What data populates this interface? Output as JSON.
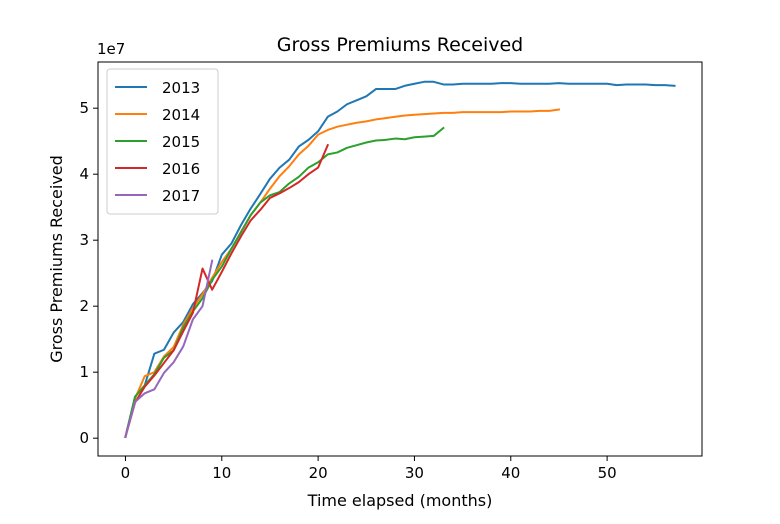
{
  "chart_data": {
    "type": "line",
    "title": "Gross Premiums Received",
    "xlabel": "Time elapsed (months)",
    "ylabel": "Gross Premiums Received",
    "y_offset_text": "1e7",
    "xlim": [
      -2.85,
      59.85
    ],
    "ylim": [
      -0.27,
      5.7
    ],
    "x_ticks": [
      0,
      10,
      20,
      30,
      40,
      50
    ],
    "x_tick_labels": [
      "0",
      "10",
      "20",
      "30",
      "40",
      "50"
    ],
    "y_ticks": [
      0,
      1,
      2,
      3,
      4,
      5
    ],
    "y_tick_labels": [
      "0",
      "1",
      "2",
      "3",
      "4",
      "5"
    ],
    "y_scale_note": "values in units of 1e7",
    "grid": false,
    "legend_position": "top-left",
    "series": [
      {
        "name": "2013",
        "color": "#1f77b4",
        "x": [
          0,
          1,
          2,
          3,
          4,
          5,
          6,
          7,
          8,
          9,
          10,
          11,
          12,
          13,
          14,
          15,
          16,
          17,
          18,
          19,
          20,
          21,
          22,
          23,
          24,
          25,
          26,
          27,
          28,
          29,
          30,
          31,
          32,
          33,
          34,
          35,
          36,
          37,
          38,
          39,
          40,
          41,
          42,
          43,
          44,
          45,
          46,
          47,
          48,
          49,
          50,
          51,
          52,
          53,
          54,
          55,
          56,
          57
        ],
        "values": [
          0.02,
          0.63,
          0.8,
          1.28,
          1.34,
          1.6,
          1.76,
          2.03,
          2.2,
          2.38,
          2.78,
          2.95,
          3.23,
          3.48,
          3.7,
          3.93,
          4.1,
          4.22,
          4.42,
          4.52,
          4.65,
          4.87,
          4.95,
          5.06,
          5.12,
          5.18,
          5.29,
          5.29,
          5.29,
          5.34,
          5.37,
          5.4,
          5.4,
          5.36,
          5.36,
          5.37,
          5.37,
          5.37,
          5.37,
          5.38,
          5.38,
          5.37,
          5.37,
          5.37,
          5.37,
          5.38,
          5.37,
          5.37,
          5.37,
          5.37,
          5.37,
          5.35,
          5.36,
          5.36,
          5.36,
          5.35,
          5.35,
          5.34
        ]
      },
      {
        "name": "2014",
        "color": "#ff7f0e",
        "x": [
          0,
          1,
          2,
          3,
          4,
          5,
          6,
          7,
          8,
          9,
          10,
          11,
          12,
          13,
          14,
          15,
          16,
          17,
          18,
          19,
          20,
          21,
          22,
          23,
          24,
          25,
          26,
          27,
          28,
          29,
          30,
          31,
          32,
          33,
          34,
          35,
          36,
          37,
          38,
          39,
          40,
          41,
          42,
          43,
          44,
          45
        ],
        "values": [
          0.02,
          0.6,
          0.94,
          1.0,
          1.24,
          1.38,
          1.72,
          1.97,
          2.18,
          2.43,
          2.67,
          2.87,
          3.13,
          3.38,
          3.57,
          3.78,
          3.97,
          4.12,
          4.3,
          4.43,
          4.6,
          4.67,
          4.72,
          4.75,
          4.78,
          4.8,
          4.83,
          4.85,
          4.87,
          4.89,
          4.9,
          4.91,
          4.92,
          4.93,
          4.93,
          4.94,
          4.94,
          4.94,
          4.94,
          4.94,
          4.95,
          4.95,
          4.95,
          4.96,
          4.96,
          4.98
        ]
      },
      {
        "name": "2015",
        "color": "#2ca02c",
        "x": [
          0,
          1,
          2,
          3,
          4,
          5,
          6,
          7,
          8,
          9,
          10,
          11,
          12,
          13,
          14,
          15,
          16,
          17,
          18,
          19,
          20,
          21,
          22,
          23,
          24,
          25,
          26,
          27,
          28,
          29,
          30,
          31,
          32,
          33
        ],
        "values": [
          0.02,
          0.63,
          0.8,
          0.97,
          1.22,
          1.33,
          1.68,
          1.92,
          2.12,
          2.4,
          2.6,
          2.87,
          3.12,
          3.38,
          3.57,
          3.68,
          3.73,
          3.86,
          3.96,
          4.1,
          4.18,
          4.3,
          4.33,
          4.4,
          4.44,
          4.48,
          4.51,
          4.52,
          4.54,
          4.53,
          4.56,
          4.57,
          4.58,
          4.7
        ]
      },
      {
        "name": "2016",
        "color": "#d62728",
        "x": [
          0,
          1,
          2,
          3,
          4,
          5,
          6,
          7,
          8,
          9,
          10,
          11,
          12,
          13,
          14,
          15,
          16,
          17,
          18,
          19,
          20,
          21
        ],
        "values": [
          0.02,
          0.54,
          0.78,
          0.95,
          1.14,
          1.33,
          1.62,
          1.9,
          2.57,
          2.25,
          2.52,
          2.8,
          3.06,
          3.3,
          3.46,
          3.64,
          3.71,
          3.79,
          3.88,
          4.0,
          4.1,
          4.44
        ]
      },
      {
        "name": "2017",
        "color": "#9467bd",
        "x": [
          0,
          1,
          2,
          3,
          4,
          5,
          6,
          7,
          8,
          9
        ],
        "values": [
          0.02,
          0.55,
          0.68,
          0.74,
          0.99,
          1.15,
          1.39,
          1.8,
          2.0,
          2.69
        ]
      }
    ]
  }
}
